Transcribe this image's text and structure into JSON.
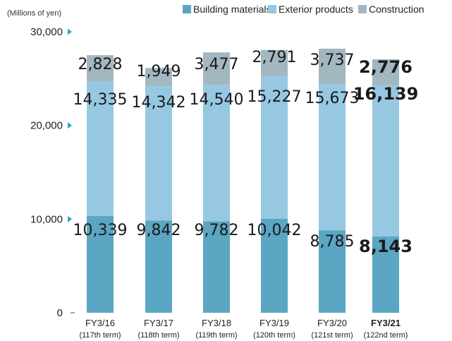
{
  "chart_data": {
    "type": "bar",
    "stacked": true,
    "unit_label": "(Millions of yen)",
    "categories": [
      "FY3/16",
      "FY3/17",
      "FY3/18",
      "FY3/19",
      "FY3/20",
      "FY3/21"
    ],
    "category_sublabels": [
      "(117th term)",
      "(118th term)",
      "(119th term)",
      "(120th term)",
      "(121st term)",
      "(122nd term)"
    ],
    "highlight_category": "FY3/21",
    "series": [
      {
        "name": "Building materials",
        "color": "#5aa6c3",
        "values": [
          10339,
          9842,
          9782,
          10042,
          8785,
          8143
        ]
      },
      {
        "name": "Exterior products",
        "color": "#96c8e2",
        "values": [
          14335,
          14342,
          14540,
          15227,
          15673,
          16139
        ]
      },
      {
        "name": "Construction",
        "color": "#a3b7c1",
        "values": [
          2828,
          1949,
          3477,
          2791,
          3737,
          2776
        ]
      }
    ],
    "data_labels": [
      [
        "10,339",
        "9,842",
        "9,782",
        "10,042",
        "8,785",
        "8,143"
      ],
      [
        "14,335",
        "14,342",
        "14,540",
        "15,227",
        "15,673",
        "16,139"
      ],
      [
        "2,828",
        "1,949",
        "3,477",
        "2,791",
        "3,737",
        "2,776"
      ]
    ],
    "y_ticks": [
      "0",
      "10,000",
      "20,000",
      "30,000"
    ],
    "y_tick_values": [
      0,
      10000,
      20000,
      30000
    ],
    "ylim": [
      0,
      30000
    ],
    "legend_position": "top-right",
    "grid": false,
    "tick_marker_color": "#29a3d8"
  }
}
